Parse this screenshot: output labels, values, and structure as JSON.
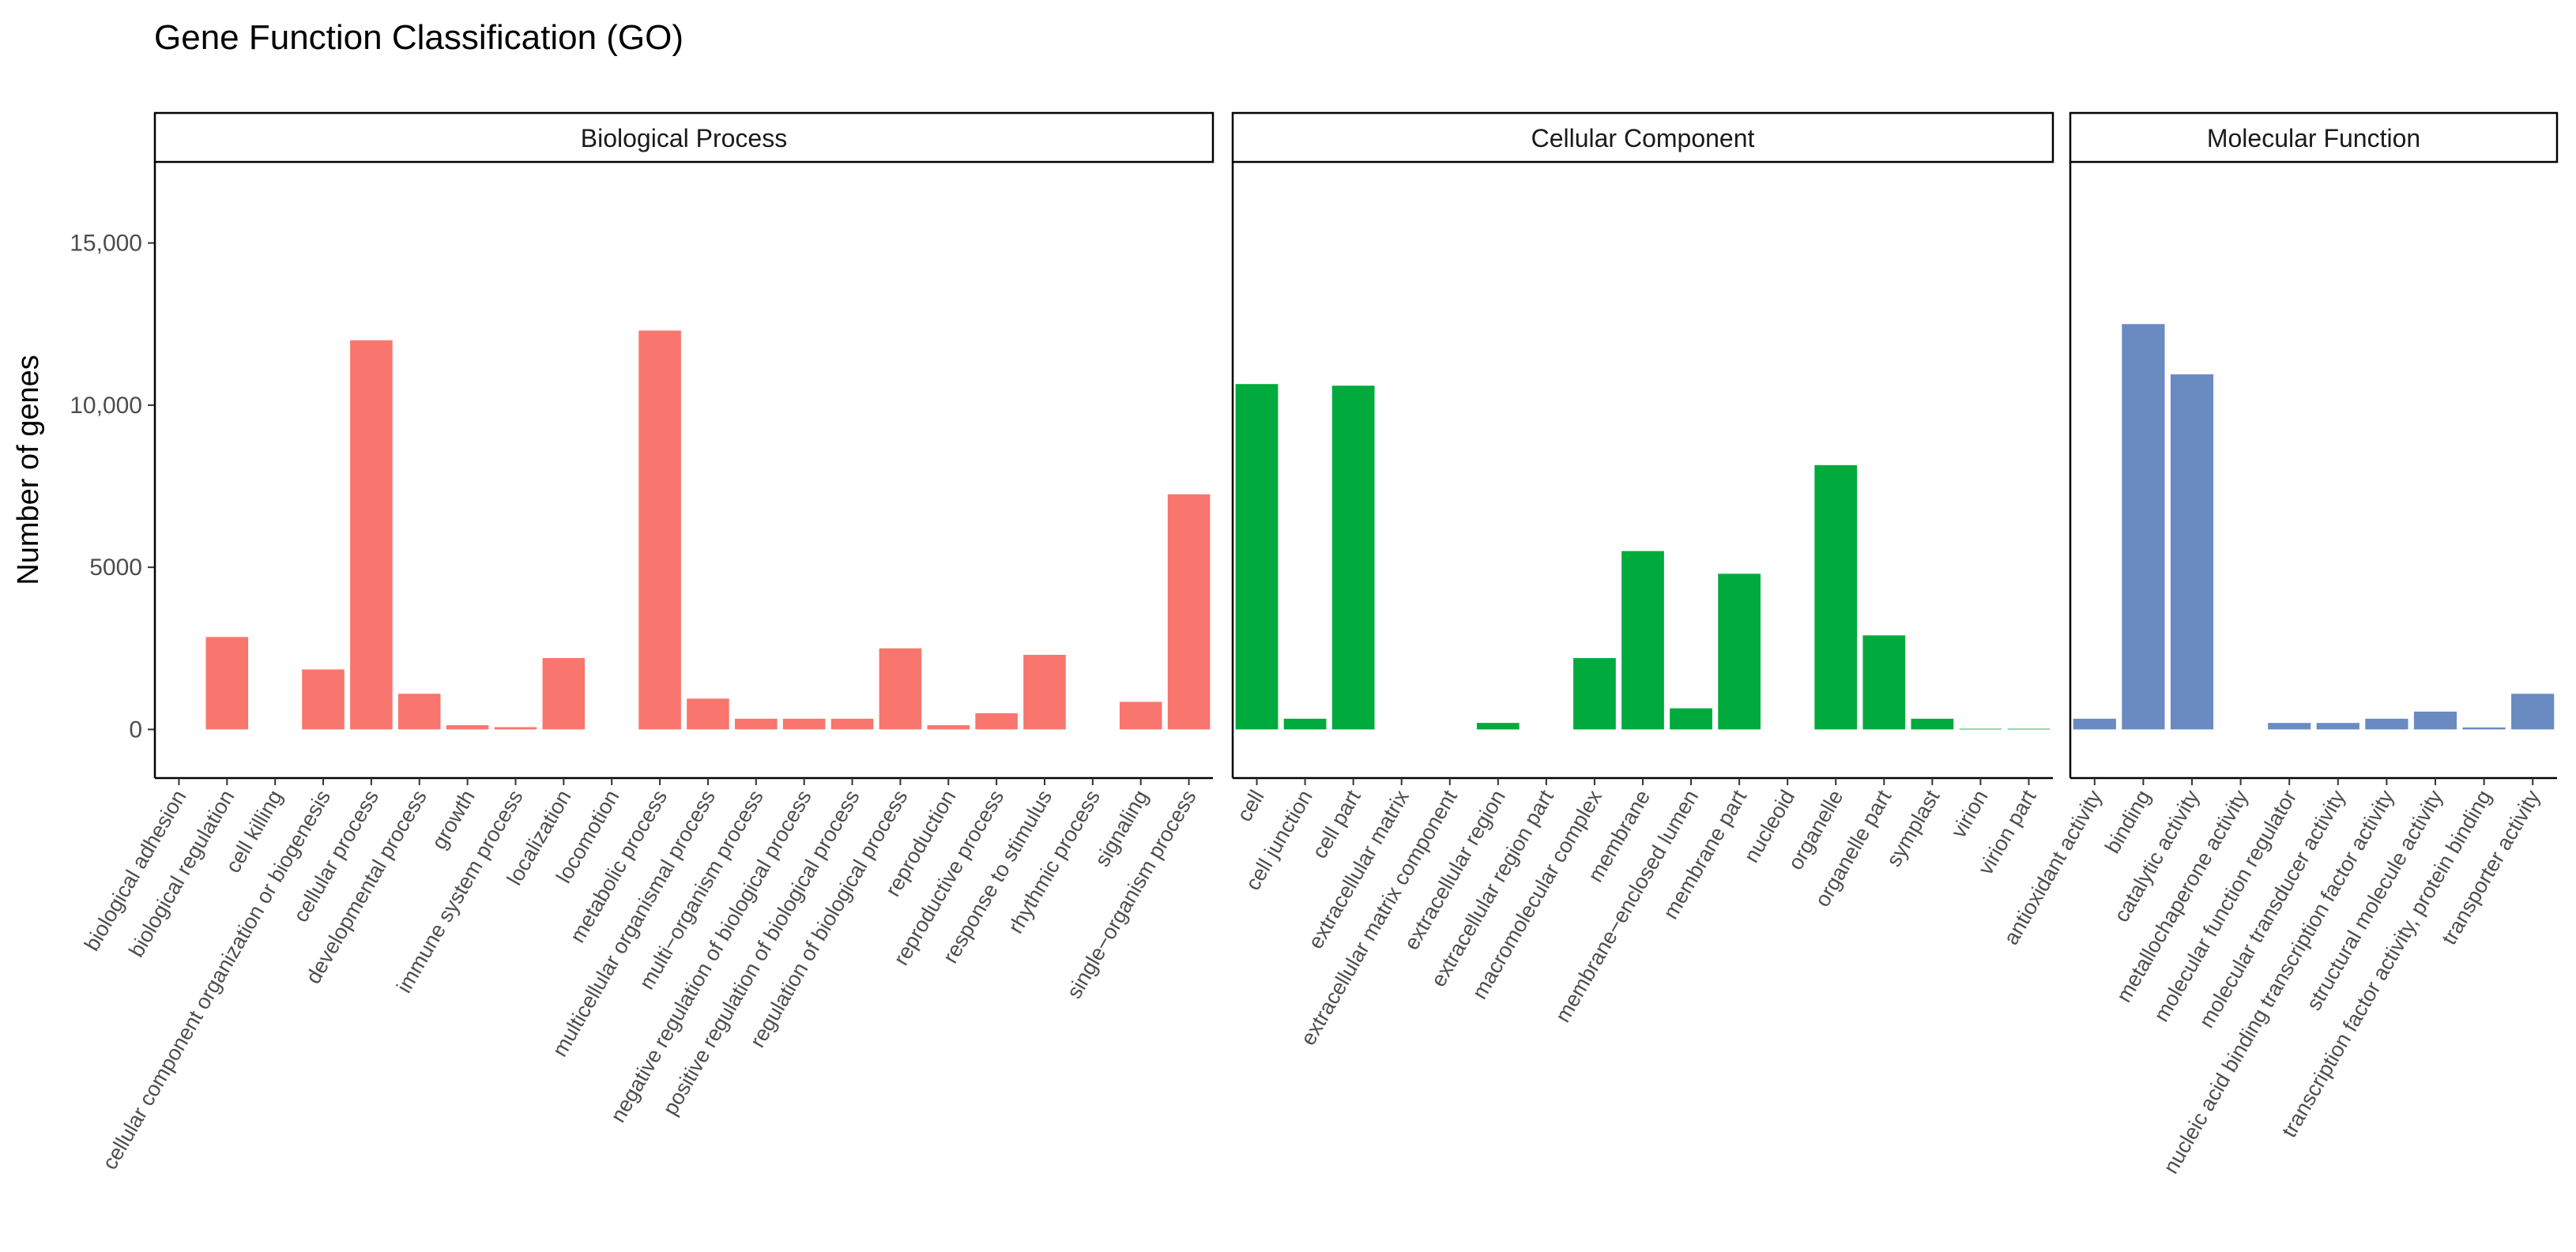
{
  "chart_data": {
    "type": "bar",
    "title": "Gene Function Classification (GO)",
    "xlabel": "",
    "ylabel": "Number of genes",
    "ylim": [
      -1500,
      17500
    ],
    "yticks": [
      0,
      5000,
      10000,
      15000
    ],
    "ytick_labels": [
      "0",
      "5000",
      "10,000",
      "15,000"
    ],
    "grid": false,
    "legend": "none",
    "facets": [
      {
        "name": "Biological Process",
        "color": "#F8766D",
        "categories": [
          "biological adhesion",
          "biological regulation",
          "cell killing",
          "cellular component organization or biogenesis",
          "cellular process",
          "developmental process",
          "growth",
          "immune system process",
          "localization",
          "locomotion",
          "metabolic process",
          "multicellular organismal process",
          "multi−organism process",
          "negative regulation of biological process",
          "positive regulation of biological process",
          "regulation of biological process",
          "reproduction",
          "reproductive process",
          "response to stimulus",
          "rhythmic process",
          "signaling",
          "single−organism process"
        ],
        "values": [
          0,
          2850,
          0,
          1850,
          12000,
          1100,
          130,
          70,
          2200,
          0,
          12300,
          950,
          330,
          330,
          330,
          2500,
          130,
          500,
          2300,
          0,
          850,
          7250
        ]
      },
      {
        "name": "Cellular Component",
        "color": "#00AA3C",
        "categories": [
          "cell",
          "cell junction",
          "cell part",
          "extracellular matrix",
          "extracellular matrix component",
          "extracellular region",
          "extracellular region part",
          "macromolecular complex",
          "membrane",
          "membrane−enclosed lumen",
          "membrane part",
          "nucleoid",
          "organelle",
          "organelle part",
          "symplast",
          "virion",
          "virion part"
        ],
        "values": [
          10650,
          330,
          10600,
          0,
          0,
          200,
          0,
          2200,
          5500,
          650,
          4800,
          0,
          8150,
          2900,
          330,
          20,
          20
        ]
      },
      {
        "name": "Molecular Function",
        "color": "#6A8BC2",
        "categories": [
          "antioxidant activity",
          "binding",
          "catalytic activity",
          "metallochaperone activity",
          "molecular function regulator",
          "molecular transducer activity",
          "nucleic acid binding transcription factor activity",
          "structural molecule activity",
          "transcription factor activity, protein binding",
          "transporter activity"
        ],
        "values": [
          330,
          12500,
          10950,
          0,
          200,
          200,
          330,
          550,
          60,
          1100
        ]
      }
    ]
  }
}
